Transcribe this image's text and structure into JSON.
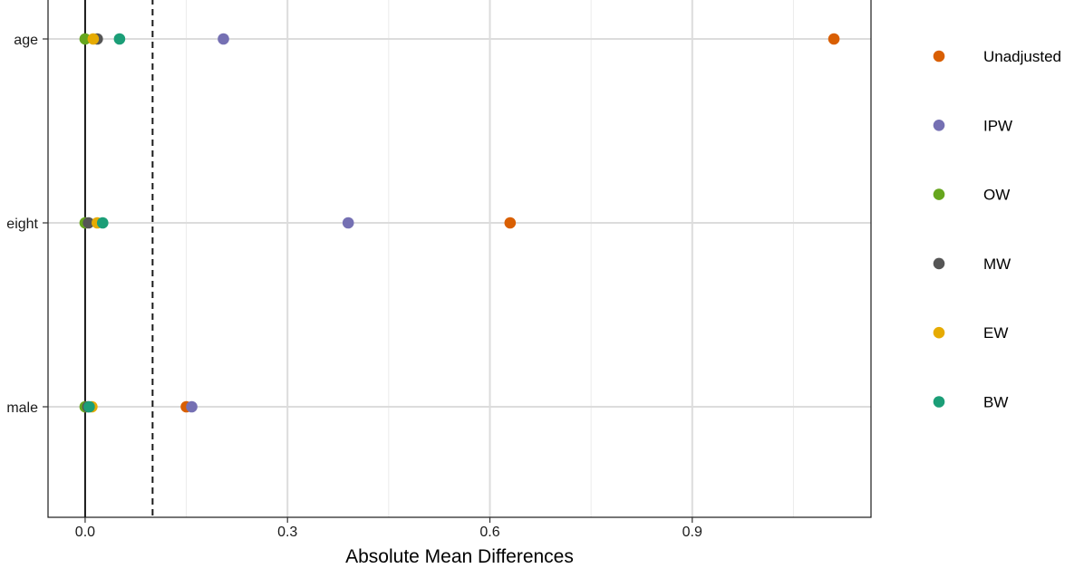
{
  "chart_data": {
    "type": "scatter",
    "title": "",
    "xlabel": "Absolute Mean Differences",
    "ylabel": "",
    "xlim": [
      -0.055,
      1.165
    ],
    "x_ticks": [
      0.0,
      0.3,
      0.6,
      0.9
    ],
    "x_tick_labels": [
      "0.0",
      "0.3",
      "0.6",
      "0.9"
    ],
    "categories": [
      "age",
      "eight",
      "male"
    ],
    "threshold_line": 0.1,
    "grid": true,
    "legend_position": "right",
    "series": [
      {
        "name": "Unadjusted",
        "color": "#D95F02",
        "values": [
          1.11,
          0.63,
          0.15
        ]
      },
      {
        "name": "IPW",
        "color": "#7570B3",
        "values": [
          0.205,
          0.39,
          0.158
        ]
      },
      {
        "name": "OW",
        "color": "#66A61E",
        "values": [
          0.0,
          0.0,
          0.0
        ]
      },
      {
        "name": "MW",
        "color": "#555555",
        "values": [
          0.018,
          0.005,
          0.004
        ]
      },
      {
        "name": "EW",
        "color": "#E6AB02",
        "values": [
          0.012,
          0.018,
          0.01
        ]
      },
      {
        "name": "BW",
        "color": "#1B9E77",
        "values": [
          0.051,
          0.026,
          0.006
        ]
      }
    ]
  }
}
